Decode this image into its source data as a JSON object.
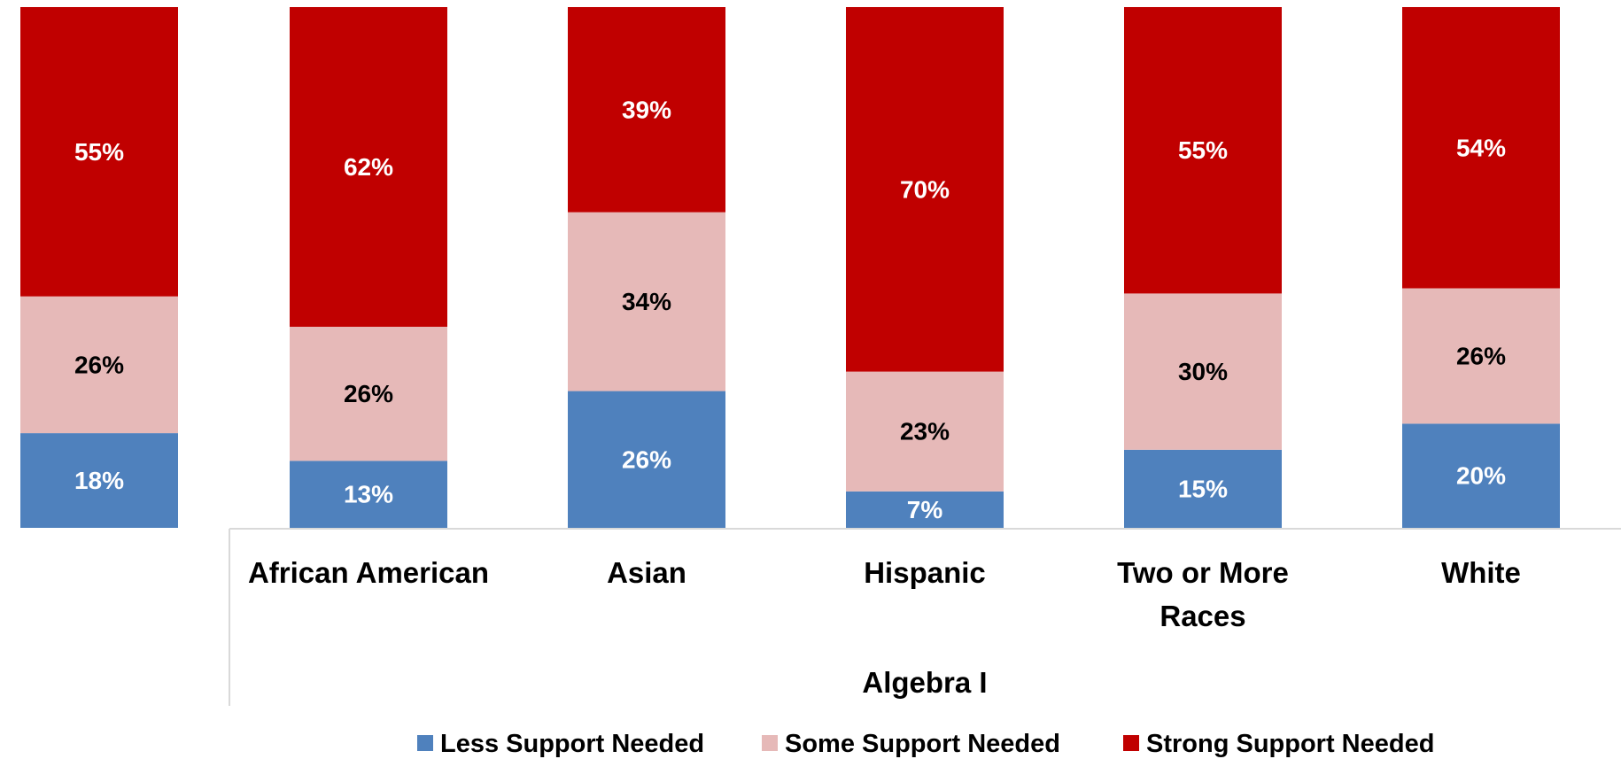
{
  "chart_data": {
    "type": "bar",
    "stacked": true,
    "percent": true,
    "group_label": "Algebra I",
    "categories": [
      "",
      "African American",
      "Asian",
      "Hispanic",
      "Two or More Races",
      "White"
    ],
    "series": [
      {
        "name": "Less Support Needed",
        "color": "#4f81bd",
        "label_color": "#ffffff",
        "values": [
          18,
          13,
          26,
          7,
          15,
          20
        ]
      },
      {
        "name": "Some Support Needed",
        "color": "#e6b9b8",
        "label_color": "#000000",
        "values": [
          26,
          26,
          34,
          23,
          30,
          26
        ]
      },
      {
        "name": "Strong Support Needed",
        "color": "#c00000",
        "label_color": "#ffffff",
        "values": [
          55,
          62,
          39,
          70,
          55,
          54
        ]
      }
    ],
    "value_suffix": "%",
    "legend_position": "bottom",
    "grid": false
  }
}
